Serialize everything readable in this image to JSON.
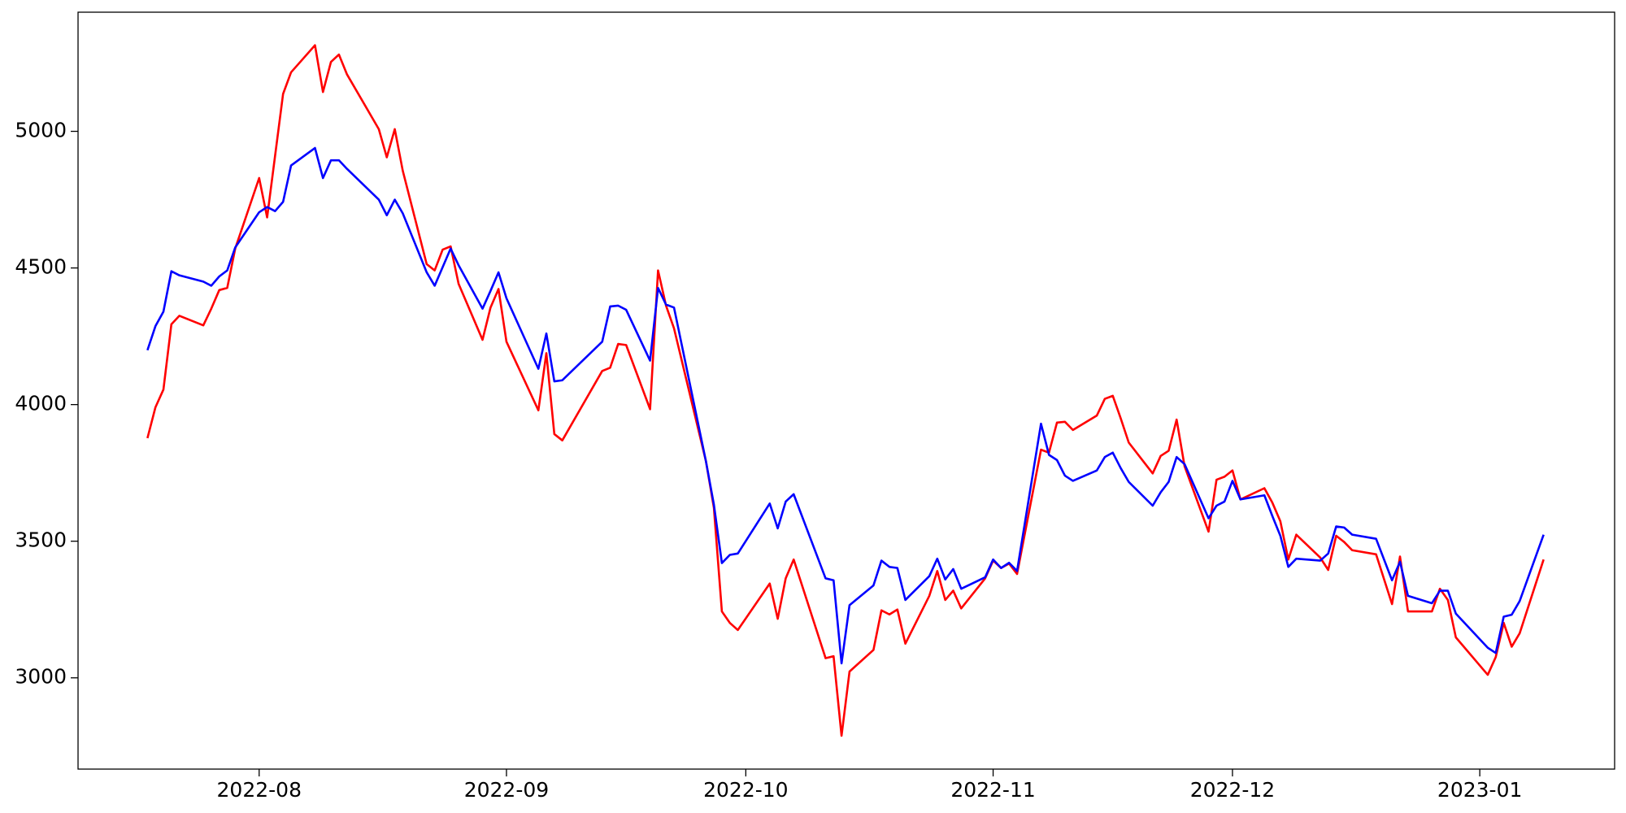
{
  "chart_data": {
    "type": "line",
    "x": [
      19191,
      19192,
      19193,
      19194,
      19195,
      19198,
      19199,
      19200,
      19201,
      19202,
      19205,
      19206,
      19207,
      19208,
      19209,
      19212,
      19213,
      19214,
      19215,
      19216,
      19220,
      19221,
      19222,
      19223,
      19226,
      19227,
      19228,
      19229,
      19230,
      19233,
      19234,
      19235,
      19236,
      19240,
      19241,
      19242,
      19243,
      19248,
      19249,
      19250,
      19251,
      19254,
      19255,
      19256,
      19257,
      19261,
      19262,
      19263,
      19264,
      19265,
      19269,
      19270,
      19271,
      19272,
      19276,
      19277,
      19278,
      19279,
      19282,
      19283,
      19284,
      19285,
      19286,
      19289,
      19290,
      19291,
      19292,
      19293,
      19296,
      19297,
      19298,
      19299,
      19300,
      19303,
      19304,
      19305,
      19306,
      19307,
      19310,
      19311,
      19312,
      19313,
      19314,
      19317,
      19318,
      19319,
      19320,
      19321,
      19324,
      19325,
      19326,
      19327,
      19328,
      19331,
      19332,
      19333,
      19334,
      19335,
      19338,
      19339,
      19340,
      19341,
      19342,
      19345,
      19347,
      19348,
      19349,
      19352,
      19353,
      19354,
      19355,
      19359,
      19360,
      19361,
      19362,
      19363,
      19366
    ],
    "series": [
      {
        "color": "#ff0000",
        "values": [
          3877,
          3990,
          4055,
          4294,
          4325,
          4290,
          4351,
          4419,
          4427,
          4571,
          4829,
          4685,
          4911,
          5137,
          5216,
          5315,
          5144,
          5254,
          5281,
          5209,
          5008,
          4905,
          5008,
          4856,
          4514,
          4491,
          4567,
          4579,
          4442,
          4237,
          4355,
          4423,
          4230,
          3979,
          4188,
          3892,
          3869,
          4123,
          4135,
          4222,
          4218,
          3983,
          4491,
          4362,
          4279,
          3793,
          3622,
          3243,
          3201,
          3175,
          3345,
          3216,
          3364,
          3433,
          3072,
          3079,
          2788,
          3023,
          3102,
          3247,
          3232,
          3250,
          3125,
          3300,
          3391,
          3285,
          3319,
          3254,
          3364,
          3429,
          3402,
          3418,
          3380,
          3835,
          3824,
          3934,
          3937,
          3907,
          3960,
          4021,
          4032,
          3949,
          3861,
          3748,
          3812,
          3831,
          3945,
          3774,
          3535,
          3725,
          3736,
          3759,
          3653,
          3694,
          3641,
          3573,
          3433,
          3524,
          3440,
          3395,
          3520,
          3497,
          3467,
          3452,
          3270,
          3444,
          3243,
          3243,
          3326,
          3285,
          3148,
          3011,
          3076,
          3201,
          3114,
          3163,
          3433
        ]
      },
      {
        "color": "#0000ff",
        "values": [
          4199,
          4287,
          4340,
          4488,
          4473,
          4450,
          4435,
          4469,
          4491,
          4575,
          4704,
          4723,
          4708,
          4742,
          4875,
          4939,
          4829,
          4894,
          4894,
          4863,
          4750,
          4693,
          4750,
          4700,
          4484,
          4435,
          4503,
          4571,
          4510,
          4351,
          4416,
          4484,
          4389,
          4131,
          4260,
          4085,
          4089,
          4230,
          4359,
          4362,
          4347,
          4161,
          4427,
          4366,
          4355,
          3793,
          3634,
          3420,
          3450,
          3455,
          3638,
          3547,
          3645,
          3672,
          3364,
          3357,
          3053,
          3266,
          3338,
          3429,
          3406,
          3402,
          3285,
          3372,
          3436,
          3360,
          3398,
          3326,
          3368,
          3433,
          3402,
          3421,
          3391,
          3930,
          3816,
          3797,
          3740,
          3721,
          3759,
          3808,
          3824,
          3767,
          3717,
          3630,
          3679,
          3717,
          3808,
          3782,
          3584,
          3630,
          3645,
          3721,
          3653,
          3668,
          3592,
          3520,
          3406,
          3436,
          3429,
          3455,
          3554,
          3550,
          3524,
          3509,
          3357,
          3425,
          3300,
          3273,
          3319,
          3319,
          3235,
          3110,
          3091,
          3224,
          3231,
          3281,
          3524
        ]
      }
    ],
    "xlim": [
      19182.3,
      19374.9
    ],
    "ylim": [
      2666,
      5436
    ],
    "xticks": [
      {
        "value": 19205,
        "label": "2022-08"
      },
      {
        "value": 19236,
        "label": "2022-09"
      },
      {
        "value": 19266,
        "label": "2022-10"
      },
      {
        "value": 19297,
        "label": "2022-11"
      },
      {
        "value": 19327,
        "label": "2022-12"
      },
      {
        "value": 19358,
        "label": "2023-01"
      }
    ],
    "yticks": [
      3000,
      3500,
      4000,
      4500,
      5000
    ]
  }
}
